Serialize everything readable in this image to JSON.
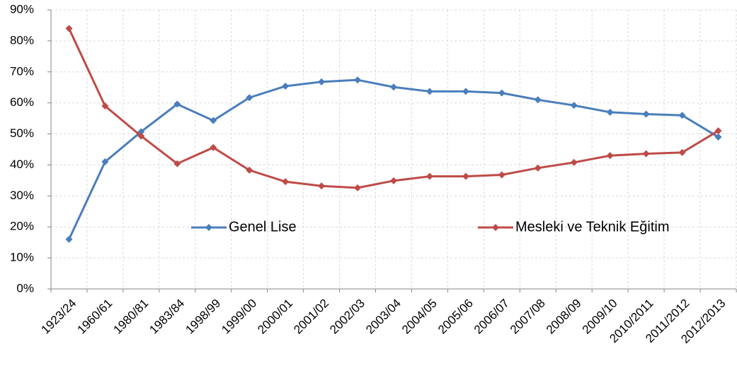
{
  "chart_data": {
    "type": "line",
    "categories": [
      "1923/24",
      "1960/61",
      "1980/81",
      "1983/84",
      "1998/99",
      "1999/00",
      "2000/01",
      "2001/02",
      "2002/03",
      "2003/04",
      "2004/05",
      "2005/06",
      "2006/07",
      "2007/08",
      "2008/09",
      "2009/10",
      "2010/2011",
      "2011/2012",
      "2012/2013"
    ],
    "series": [
      {
        "name": "Genel Lise",
        "color": "#4a7ebb",
        "values": [
          16,
          41,
          50.7,
          59.6,
          54.3,
          61.7,
          65.4,
          66.8,
          67.4,
          65.1,
          63.7,
          63.7,
          63.2,
          61.0,
          59.2,
          57.0,
          56.4,
          56.0,
          49.0
        ]
      },
      {
        "name": "Mesleki ve Teknik Eğitim",
        "color": "#be4b48",
        "values": [
          84,
          59,
          49.3,
          40.4,
          45.6,
          38.3,
          34.6,
          33.2,
          32.6,
          34.9,
          36.3,
          36.3,
          36.8,
          39.0,
          40.8,
          43.0,
          43.6,
          44.0,
          51.0
        ]
      }
    ],
    "ylim": [
      0,
      90
    ],
    "yticks": [
      {
        "value": 0,
        "label": "0%"
      },
      {
        "value": 10,
        "label": "10%"
      },
      {
        "value": 20,
        "label": "20%"
      },
      {
        "value": 30,
        "label": "30%"
      },
      {
        "value": 40,
        "label": "40%"
      },
      {
        "value": 50,
        "label": "50%"
      },
      {
        "value": 60,
        "label": "60%"
      },
      {
        "value": 70,
        "label": "70%"
      },
      {
        "value": 80,
        "label": "80%"
      },
      {
        "value": 90,
        "label": "90%"
      }
    ],
    "grid": true
  }
}
